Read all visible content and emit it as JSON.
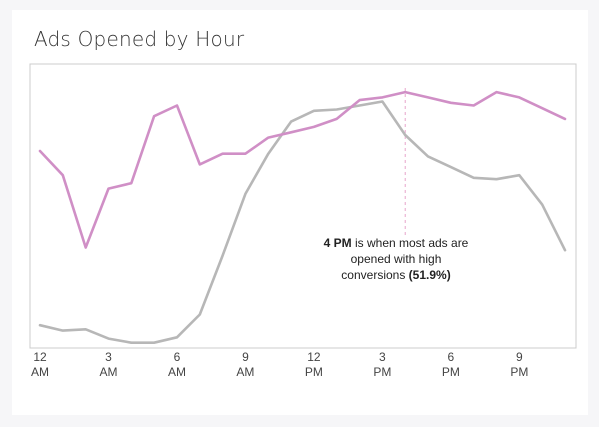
{
  "chart_data": {
    "type": "line",
    "title": "Ads Opened by Hour",
    "xlabel": "",
    "ylabel": "",
    "x": [
      0,
      1,
      2,
      3,
      4,
      5,
      6,
      7,
      8,
      9,
      10,
      11,
      12,
      13,
      14,
      15,
      16,
      17,
      18,
      19,
      20,
      21,
      22,
      23
    ],
    "x_ticks": [
      {
        "x": 0,
        "line1": "12",
        "line2": "AM"
      },
      {
        "x": 3,
        "line1": "3",
        "line2": "AM"
      },
      {
        "x": 6,
        "line1": "6",
        "line2": "AM"
      },
      {
        "x": 9,
        "line1": "9",
        "line2": "AM"
      },
      {
        "x": 12,
        "line1": "12",
        "line2": "PM"
      },
      {
        "x": 15,
        "line1": "3",
        "line2": "PM"
      },
      {
        "x": 18,
        "line1": "6",
        "line2": "PM"
      },
      {
        "x": 21,
        "line1": "9",
        "line2": "PM"
      }
    ],
    "ylim": [
      0,
      100
    ],
    "grid": false,
    "series": [
      {
        "color": "#d08fc6",
        "values": [
          72,
          63,
          36,
          58,
          60,
          85,
          89,
          67,
          71,
          71,
          77,
          79,
          81,
          84,
          91,
          92,
          94,
          92,
          90,
          89,
          94,
          92,
          88,
          84
        ]
      },
      {
        "color": "#b7b7b7",
        "values": [
          7,
          5,
          5.5,
          2,
          0.5,
          0.5,
          2.5,
          11,
          33,
          56,
          71,
          83,
          87,
          87.5,
          89,
          90.5,
          78,
          70,
          66,
          62,
          61.5,
          63,
          52,
          35
        ]
      }
    ],
    "annotation": {
      "x": 16,
      "line1_bold": "4 PM",
      "line1_rest": " is when most ads are",
      "line2": "opened with high",
      "line3_pre": "conversions ",
      "line3_bold": "(51.9%)"
    },
    "colors": {
      "axis_frame": "#cccccc",
      "marker_line": "#e7a5cc"
    }
  }
}
